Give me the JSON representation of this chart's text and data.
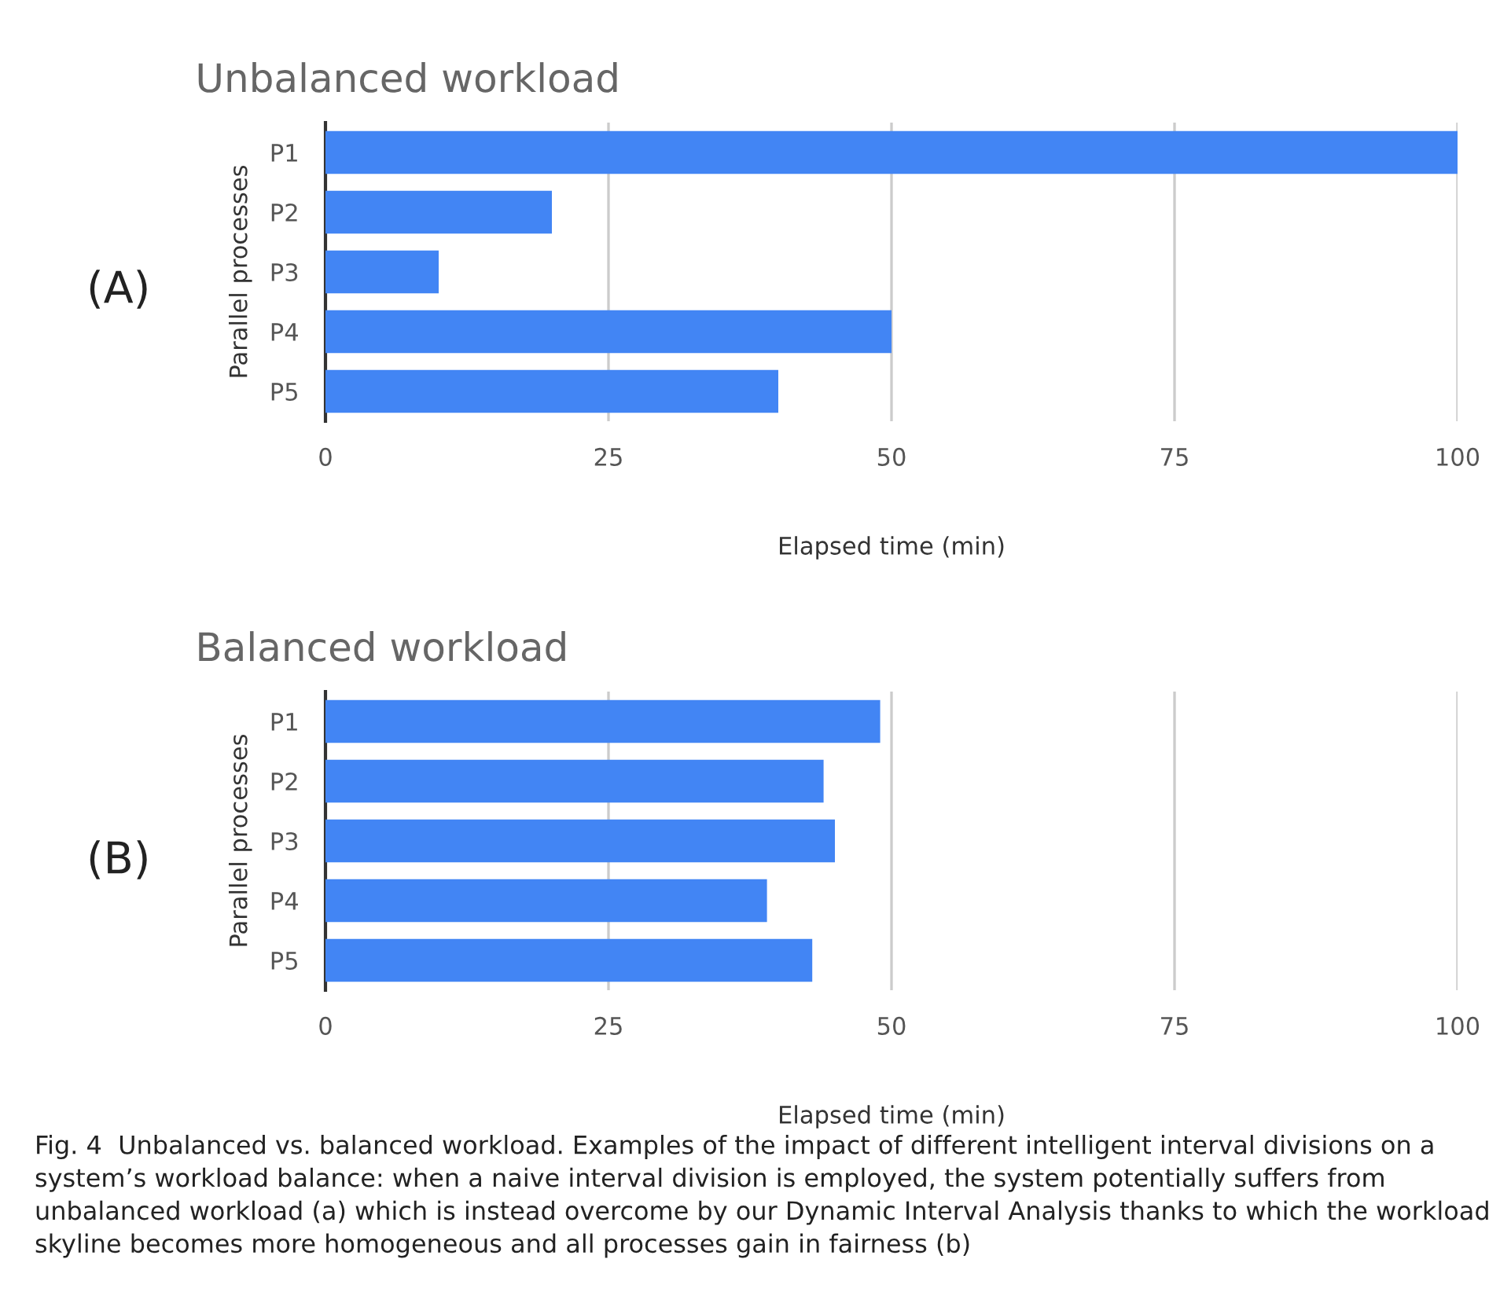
{
  "chart_data": [
    {
      "type": "bar",
      "orientation": "horizontal",
      "title": "Unbalanced workload",
      "ylabel": "Parallel processes",
      "xlabel": "Elapsed time (min)",
      "categories": [
        "P1",
        "P2",
        "P3",
        "P4",
        "P5"
      ],
      "values": [
        100,
        20,
        10,
        50,
        40
      ],
      "color": "#4285f4",
      "xlim": [
        0,
        100
      ],
      "xticks": [
        0,
        25,
        50,
        75,
        100
      ],
      "grid": "x",
      "annotations": [
        "(A)"
      ]
    },
    {
      "type": "bar",
      "orientation": "horizontal",
      "title": "Balanced workload",
      "ylabel": "Parallel processes",
      "xlabel": "Elapsed time (min)",
      "categories": [
        "P1",
        "P2",
        "P3",
        "P4",
        "P5"
      ],
      "values": [
        49,
        44,
        45,
        39,
        43
      ],
      "color": "#4285f4",
      "xlim": [
        0,
        100
      ],
      "xticks": [
        0,
        25,
        50,
        75,
        100
      ],
      "grid": "x",
      "annotations": [
        "(B)",
        "Fig. 4  Unbalanced vs. balanced workload. Examples of the impact of different intelligent interval divisions on a system’s workload balance: when a naive interval division is employed, the system potentially suffers from unbalanced workload (a) which is instead overcome by our Dynamic Interval Analysis thanks to which the workload skyline becomes more homogeneous and all processes gain in fairness (b)"
      ]
    }
  ]
}
